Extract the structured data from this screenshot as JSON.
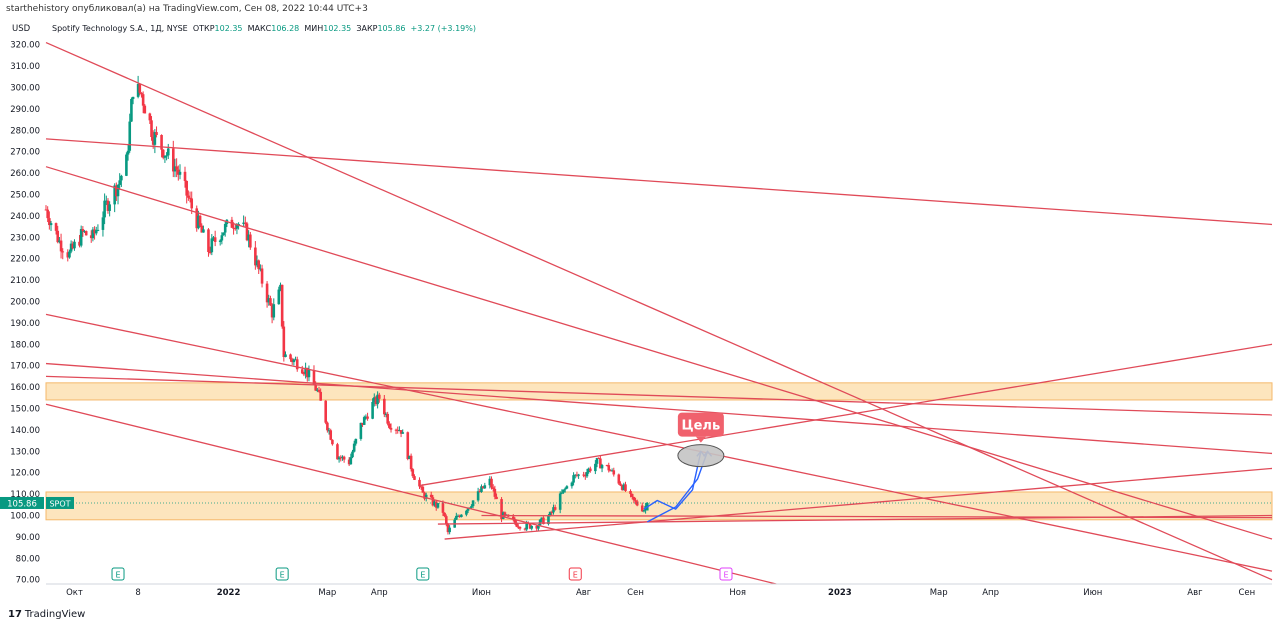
{
  "header": {
    "attribution": "starthehistory опубликовал(а) на TradingView.com, Сен 08, 2022 10:44 UTC+3"
  },
  "legend": {
    "symbol": "Spotify Technology S.A., 1Д, NYSE",
    "open_label": "ОТКР",
    "open": "102.35",
    "high_label": "МАКС",
    "high": "106.28",
    "low_label": "МИН",
    "low": "102.35",
    "close_label": "ЗАКР",
    "close": "105.86",
    "change": "+3.27 (+3.19%)"
  },
  "price_badge": {
    "value": "105.86",
    "ticker": "SPOT"
  },
  "annotation": {
    "target_label": "Цель"
  },
  "brand": {
    "logo": "17",
    "name": "TradingView"
  },
  "colors": {
    "up": "#089981",
    "down": "#f23645",
    "trendline": "#e04a58",
    "zone_fill": "#fde5bd",
    "zone_border": "#f5b86a",
    "target_badge": "#f0616d",
    "arrow": "#2962ff",
    "earnings": "#089981",
    "earnings_down": "#f23645",
    "earnings_future": "#e040fb"
  },
  "chart_data": {
    "type": "candlestick",
    "currency": "USD",
    "ylim": [
      68,
      325
    ],
    "y_ticks": [
      70,
      80,
      90,
      100,
      110,
      120,
      130,
      140,
      150,
      160,
      170,
      180,
      190,
      200,
      210,
      220,
      230,
      240,
      250,
      260,
      270,
      280,
      290,
      300,
      310,
      320
    ],
    "x_ticks": [
      {
        "label": "Окт",
        "date": "2021-10-01"
      },
      {
        "label": "8",
        "date": "2021-11-08"
      },
      {
        "label": "2022",
        "date": "2022-01-01",
        "bold": true
      },
      {
        "label": "Мар",
        "date": "2022-03-01"
      },
      {
        "label": "Апр",
        "date": "2022-04-01"
      },
      {
        "label": "Июн",
        "date": "2022-06-01"
      },
      {
        "label": "Авг",
        "date": "2022-08-01"
      },
      {
        "label": "Сен",
        "date": "2022-09-01"
      },
      {
        "label": "Ноя",
        "date": "2022-11-01"
      },
      {
        "label": "2023",
        "date": "2023-01-01",
        "bold": true
      },
      {
        "label": "Мар",
        "date": "2023-03-01"
      },
      {
        "label": "Апр",
        "date": "2023-04-01"
      },
      {
        "label": "Июн",
        "date": "2023-06-01"
      },
      {
        "label": "Авг",
        "date": "2023-08-01"
      },
      {
        "label": "Сен",
        "date": "2023-09-01"
      }
    ],
    "price_path": [
      [
        "2021-09-14",
        243
      ],
      [
        "2021-09-22",
        228
      ],
      [
        "2021-09-28",
        222
      ],
      [
        "2021-10-06",
        232
      ],
      [
        "2021-10-12",
        230
      ],
      [
        "2021-10-20",
        245
      ],
      [
        "2021-10-27",
        255
      ],
      [
        "2021-11-01",
        265
      ],
      [
        "2021-11-05",
        300
      ],
      [
        "2021-11-10",
        297
      ],
      [
        "2021-11-17",
        278
      ],
      [
        "2021-11-24",
        270
      ],
      [
        "2021-12-01",
        262
      ],
      [
        "2021-12-08",
        248
      ],
      [
        "2021-12-14",
        236
      ],
      [
        "2021-12-20",
        224
      ],
      [
        "2021-12-28",
        233
      ],
      [
        "2022-01-05",
        238
      ],
      [
        "2022-01-12",
        232
      ],
      [
        "2022-01-20",
        212
      ],
      [
        "2022-01-27",
        195
      ],
      [
        "2022-02-01",
        205
      ],
      [
        "2022-02-03",
        175
      ],
      [
        "2022-02-10",
        172
      ],
      [
        "2022-02-16",
        168
      ],
      [
        "2022-02-23",
        158
      ],
      [
        "2022-03-01",
        142
      ],
      [
        "2022-03-07",
        128
      ],
      [
        "2022-03-14",
        125
      ],
      [
        "2022-03-21",
        142
      ],
      [
        "2022-03-28",
        152
      ],
      [
        "2022-04-01",
        155
      ],
      [
        "2022-04-07",
        143
      ],
      [
        "2022-04-14",
        140
      ],
      [
        "2022-04-21",
        120
      ],
      [
        "2022-04-27",
        110
      ],
      [
        "2022-05-03",
        106
      ],
      [
        "2022-05-09",
        102
      ],
      [
        "2022-05-12",
        92
      ],
      [
        "2022-05-18",
        100
      ],
      [
        "2022-05-25",
        105
      ],
      [
        "2022-06-01",
        112
      ],
      [
        "2022-06-06",
        116
      ],
      [
        "2022-06-13",
        100
      ],
      [
        "2022-06-20",
        97
      ],
      [
        "2022-06-27",
        95
      ],
      [
        "2022-07-05",
        96
      ],
      [
        "2022-07-12",
        100
      ],
      [
        "2022-07-19",
        110
      ],
      [
        "2022-07-26",
        118
      ],
      [
        "2022-08-02",
        120
      ],
      [
        "2022-08-09",
        125
      ],
      [
        "2022-08-16",
        122
      ],
      [
        "2022-08-23",
        115
      ],
      [
        "2022-08-30",
        107
      ],
      [
        "2022-09-06",
        103
      ],
      [
        "2022-09-08",
        105.86
      ]
    ],
    "zones": [
      {
        "from": 154,
        "to": 162
      },
      {
        "from": 98,
        "to": 111
      }
    ],
    "trendlines": [
      [
        [
          "2021-09-14",
          321
        ],
        [
          "2023-09-16",
          70
        ]
      ],
      [
        [
          "2021-09-14",
          276
        ],
        [
          "2023-09-16",
          236
        ]
      ],
      [
        [
          "2021-09-14",
          263
        ],
        [
          "2023-09-16",
          89
        ]
      ],
      [
        [
          "2021-09-14",
          194
        ],
        [
          "2023-09-16",
          74
        ]
      ],
      [
        [
          "2021-09-14",
          171
        ],
        [
          "2023-09-16",
          129
        ]
      ],
      [
        [
          "2021-09-14",
          165
        ],
        [
          "2023-09-16",
          147
        ]
      ],
      [
        [
          "2021-09-14",
          152
        ],
        [
          "2022-11-24",
          68
        ]
      ],
      [
        [
          "2022-04-25",
          114
        ],
        [
          "2023-09-16",
          180
        ]
      ],
      [
        [
          "2022-05-10",
          89
        ],
        [
          "2023-09-16",
          122
        ]
      ],
      [
        [
          "2022-05-06",
          96
        ],
        [
          "2023-09-16",
          100
        ]
      ],
      [
        [
          "2022-06-01",
          100
        ],
        [
          "2023-09-16",
          99
        ]
      ]
    ],
    "earnings": [
      {
        "date": "2021-10-27",
        "type": "up"
      },
      {
        "date": "2022-02-02",
        "type": "up"
      },
      {
        "date": "2022-04-27",
        "type": "up"
      },
      {
        "date": "2022-07-27",
        "type": "down"
      },
      {
        "date": "2022-10-25",
        "type": "future"
      }
    ],
    "target": {
      "date": "2022-10-10",
      "price": 128
    },
    "projection": [
      [
        "2022-09-06",
        103
      ],
      [
        "2022-09-14",
        107
      ],
      [
        "2022-09-25",
        103
      ],
      [
        "2022-10-05",
        112
      ],
      [
        "2022-10-10",
        130
      ]
    ],
    "projection2": [
      [
        "2022-09-08",
        97
      ],
      [
        "2022-09-25",
        104
      ],
      [
        "2022-10-08",
        117
      ],
      [
        "2022-10-14",
        130
      ]
    ]
  }
}
